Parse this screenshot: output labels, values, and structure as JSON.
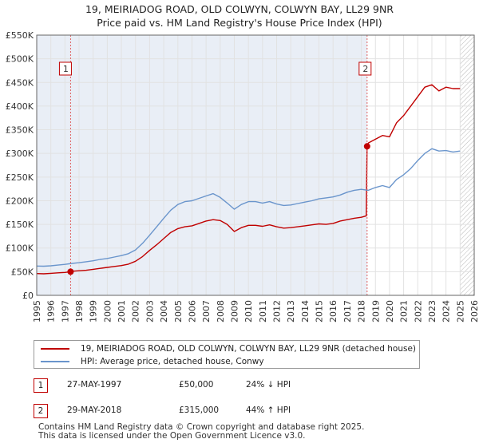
{
  "chart_data": {
    "type": "line",
    "title": "19, MEIRIADOG ROAD, OLD COLWYN, COLWYN BAY, LL29 9NR",
    "subtitle": "Price paid vs. HM Land Registry's House Price Index (HPI)",
    "xlabel": "",
    "ylabel": "",
    "xlim": [
      1995,
      2026
    ],
    "ylim": [
      0,
      550000
    ],
    "y_ticks": [
      0,
      50000,
      100000,
      150000,
      200000,
      250000,
      300000,
      350000,
      400000,
      450000,
      500000,
      550000
    ],
    "y_tick_labels": [
      "£0",
      "£50K",
      "£100K",
      "£150K",
      "£200K",
      "£250K",
      "£300K",
      "£350K",
      "£400K",
      "£450K",
      "£500K",
      "£550K"
    ],
    "x_ticks": [
      1995,
      1996,
      1997,
      1998,
      1999,
      2000,
      2001,
      2002,
      2003,
      2004,
      2005,
      2006,
      2007,
      2008,
      2009,
      2010,
      2011,
      2012,
      2013,
      2014,
      2015,
      2016,
      2017,
      2018,
      2019,
      2020,
      2021,
      2022,
      2023,
      2024,
      2025,
      2026
    ],
    "grid": true,
    "colors": {
      "property": "#c00000",
      "hpi": "#6a95cc",
      "highlight": "#e9eef6",
      "vline": "#e06060"
    },
    "series": [
      {
        "name": "property",
        "x": [
          1995.0,
          1995.5,
          1996.0,
          1996.5,
          1997.0,
          1997.4,
          1997.5,
          1998.0,
          1998.5,
          1999.0,
          1999.5,
          2000.0,
          2000.5,
          2001.0,
          2001.5,
          2002.0,
          2002.5,
          2003.0,
          2003.5,
          2004.0,
          2004.5,
          2005.0,
          2005.5,
          2006.0,
          2006.5,
          2007.0,
          2007.5,
          2008.0,
          2008.5,
          2009.0,
          2009.5,
          2010.0,
          2010.5,
          2011.0,
          2011.5,
          2012.0,
          2012.5,
          2013.0,
          2013.5,
          2014.0,
          2014.5,
          2015.0,
          2015.5,
          2016.0,
          2016.5,
          2017.0,
          2017.5,
          2018.0,
          2018.35,
          2018.41,
          2018.5,
          2019.0,
          2019.5,
          2020.0,
          2020.5,
          2021.0,
          2021.5,
          2022.0,
          2022.5,
          2023.0,
          2023.5,
          2024.0,
          2024.5,
          2025.0
        ],
        "values": [
          46000,
          45500,
          46500,
          47500,
          48500,
          50000,
          51000,
          52000,
          53000,
          55000,
          57000,
          59000,
          61000,
          63000,
          66000,
          72000,
          82000,
          95000,
          107000,
          120000,
          133000,
          141000,
          145000,
          147000,
          152000,
          157000,
          160000,
          158000,
          150000,
          135000,
          143000,
          148000,
          148000,
          146000,
          149000,
          145000,
          142000,
          143000,
          145000,
          147000,
          149000,
          151000,
          150000,
          152000,
          157000,
          160000,
          163000,
          165000,
          168000,
          315000,
          322000,
          330000,
          338000,
          335000,
          365000,
          380000,
          400000,
          420000,
          440000,
          445000,
          432000,
          440000,
          437000,
          437000
        ]
      },
      {
        "name": "hpi",
        "x": [
          1995.0,
          1995.5,
          1996.0,
          1996.5,
          1997.0,
          1997.5,
          1998.0,
          1998.5,
          1999.0,
          1999.5,
          2000.0,
          2000.5,
          2001.0,
          2001.5,
          2002.0,
          2002.5,
          2003.0,
          2003.5,
          2004.0,
          2004.5,
          2005.0,
          2005.5,
          2006.0,
          2006.5,
          2007.0,
          2007.5,
          2008.0,
          2008.5,
          2009.0,
          2009.5,
          2010.0,
          2010.5,
          2011.0,
          2011.5,
          2012.0,
          2012.5,
          2013.0,
          2013.5,
          2014.0,
          2014.5,
          2015.0,
          2015.5,
          2016.0,
          2016.5,
          2017.0,
          2017.5,
          2018.0,
          2018.5,
          2019.0,
          2019.5,
          2020.0,
          2020.5,
          2021.0,
          2021.5,
          2022.0,
          2022.5,
          2023.0,
          2023.5,
          2024.0,
          2024.5,
          2025.0
        ],
        "values": [
          62000,
          61500,
          62500,
          64000,
          65500,
          67500,
          69000,
          71000,
          73000,
          76000,
          78000,
          81000,
          84000,
          88000,
          96000,
          110000,
          127000,
          145000,
          163000,
          180000,
          192000,
          198000,
          200000,
          205000,
          210000,
          215000,
          207000,
          195000,
          182000,
          192000,
          198000,
          198000,
          195000,
          198000,
          193000,
          190000,
          191000,
          194000,
          197000,
          200000,
          204000,
          206000,
          208000,
          212000,
          218000,
          222000,
          224000,
          222000,
          228000,
          232000,
          228000,
          245000,
          255000,
          268000,
          285000,
          300000,
          310000,
          305000,
          306000,
          303000,
          305000
        ]
      }
    ],
    "sales": [
      {
        "number": "1",
        "x": 1997.4,
        "value": 50000
      },
      {
        "number": "2",
        "x": 2018.41,
        "value": 315000
      }
    ],
    "highlight_range": [
      1995.0,
      2018.41
    ],
    "forecast_start": 2025.0
  },
  "legend": {
    "property_label": "19, MEIRIADOG ROAD, OLD COLWYN, COLWYN BAY, LL29 9NR (detached house)",
    "hpi_label": "HPI: Average price, detached house, Conwy"
  },
  "sales_table": [
    {
      "number": "1",
      "date": "27-MAY-1997",
      "price": "£50,000",
      "hpi_change": "24% ↓ HPI"
    },
    {
      "number": "2",
      "date": "29-MAY-2018",
      "price": "£315,000",
      "hpi_change": "44% ↑ HPI"
    }
  ],
  "footer": {
    "line1": "Contains HM Land Registry data © Crown copyright and database right 2025.",
    "line2": "This data is licensed under the Open Government Licence v3.0."
  }
}
